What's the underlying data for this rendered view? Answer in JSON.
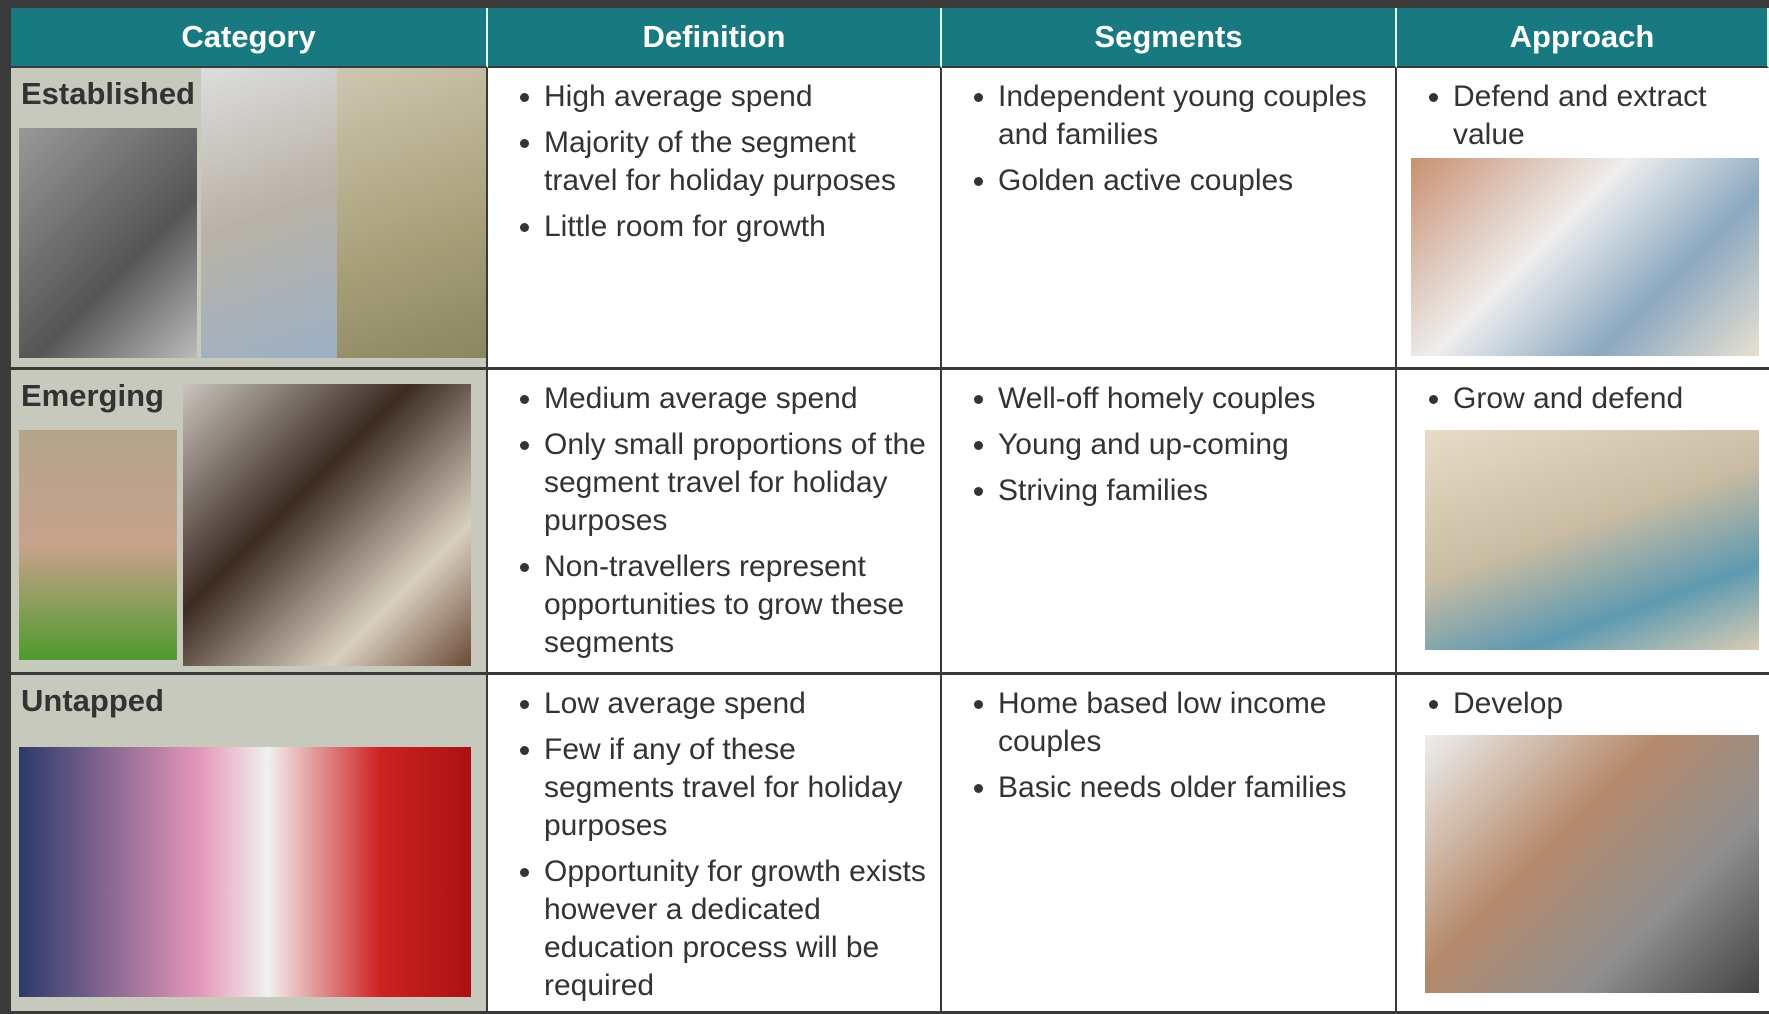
{
  "table": {
    "columns": [
      "Category",
      "Definition",
      "Segments",
      "Approach"
    ],
    "rows": [
      {
        "category": "Established",
        "definition": [
          "High average spend",
          "Majority of the segment travel for holiday purposes",
          "Little room for growth"
        ],
        "segments": [
          "Independent young couples and families",
          "Golden active couples"
        ],
        "approach": [
          "Defend and extract value"
        ]
      },
      {
        "category": "Emerging",
        "definition": [
          "Medium average spend",
          "Only small proportions of the segment travel for holiday purposes",
          "Non-travellers represent opportunities to grow these segments"
        ],
        "segments": [
          "Well-off homely couples",
          "Young and up-coming",
          "Striving families"
        ],
        "approach": [
          "Grow and defend"
        ]
      },
      {
        "category": "Untapped",
        "definition": [
          "Low average spend",
          "Few if any of these segments travel for holiday purposes",
          "Opportunity for growth exists however a dedicated education process will be required"
        ],
        "segments": [
          "Home based low income couples",
          "Basic needs older families"
        ],
        "approach": [
          "Develop"
        ]
      }
    ]
  }
}
